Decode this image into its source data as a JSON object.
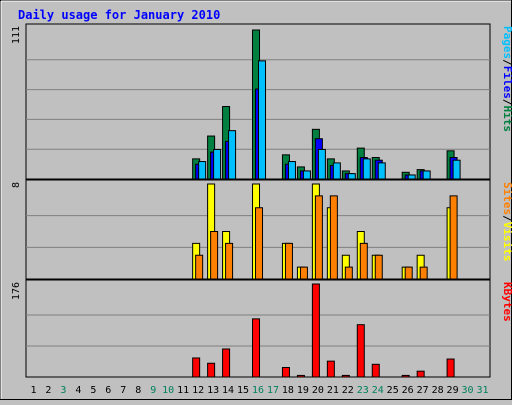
{
  "chart_data": {
    "type": "bar",
    "title": "Daily usage for January 2010",
    "categories": [
      "1",
      "2",
      "3",
      "4",
      "5",
      "6",
      "7",
      "8",
      "9",
      "10",
      "11",
      "12",
      "13",
      "14",
      "15",
      "16",
      "17",
      "18",
      "19",
      "20",
      "21",
      "22",
      "23",
      "24",
      "25",
      "26",
      "27",
      "28",
      "29",
      "30",
      "31"
    ],
    "weekend_days": [
      3,
      9,
      10,
      16,
      17,
      23,
      24,
      30,
      31
    ],
    "panels": [
      {
        "id": "hits-files-pages",
        "ymax": 111,
        "ymax_label": "111",
        "legend": [
          {
            "text": "Pages",
            "color": "#00c0ff"
          },
          {
            "text": "/",
            "color": "#000000"
          },
          {
            "text": "Files",
            "color": "#0000ff"
          },
          {
            "text": "/",
            "color": "#000000"
          },
          {
            "text": "Hits",
            "color": "#008040"
          }
        ],
        "series": [
          {
            "name": "Hits",
            "color": "#008040",
            "values": [
              0,
              0,
              0,
              0,
              0,
              0,
              0,
              0,
              0,
              0,
              0,
              15,
              32,
              54,
              0,
              111,
              0,
              18,
              9,
              37,
              15,
              6,
              23,
              16,
              0,
              5,
              7,
              0,
              21,
              0,
              0
            ]
          },
          {
            "name": "Files",
            "color": "#0000ff",
            "values": [
              0,
              0,
              0,
              0,
              0,
              0,
              0,
              0,
              0,
              0,
              0,
              11,
              20,
              28,
              0,
              67,
              0,
              11,
              6,
              30,
              10,
              4,
              16,
              14,
              0,
              3,
              6,
              0,
              16,
              0,
              0
            ]
          },
          {
            "name": "Pages",
            "color": "#00c0ff",
            "values": [
              0,
              0,
              0,
              0,
              0,
              0,
              0,
              0,
              0,
              0,
              0,
              13,
              22,
              36,
              0,
              88,
              0,
              13,
              6,
              22,
              12,
              4,
              15,
              12,
              0,
              3,
              6,
              0,
              14,
              0,
              0
            ]
          }
        ]
      },
      {
        "id": "visits-sites",
        "ymax": 8,
        "ymax_label": "8",
        "legend": [
          {
            "text": "Sites",
            "color": "#ff8000"
          },
          {
            "text": "/",
            "color": "#000000"
          },
          {
            "text": "Visits",
            "color": "#ffff00"
          }
        ],
        "series": [
          {
            "name": "Visits",
            "color": "#ffff00",
            "values": [
              0,
              0,
              0,
              0,
              0,
              0,
              0,
              0,
              0,
              0,
              0,
              3,
              8,
              4,
              0,
              8,
              0,
              3,
              1,
              8,
              6,
              2,
              4,
              2,
              0,
              1,
              2,
              0,
              6,
              0,
              0
            ]
          },
          {
            "name": "Sites",
            "color": "#ff8000",
            "values": [
              0,
              0,
              0,
              0,
              0,
              0,
              0,
              0,
              0,
              0,
              0,
              2,
              4,
              3,
              0,
              6,
              0,
              3,
              1,
              7,
              7,
              1,
              3,
              2,
              0,
              1,
              1,
              0,
              7,
              0,
              0
            ]
          }
        ]
      },
      {
        "id": "kbytes",
        "ymax": 176,
        "ymax_label": "176",
        "legend": [
          {
            "text": "KBytes",
            "color": "#ff0000"
          }
        ],
        "series": [
          {
            "name": "KBytes",
            "color": "#ff0000",
            "values": [
              0,
              0,
              0,
              0,
              0,
              0,
              0,
              0,
              0,
              0,
              0,
              36,
              26,
              53,
              0,
              110,
              0,
              18,
              3,
              176,
              30,
              3,
              99,
              24,
              0,
              3,
              11,
              0,
              34,
              0,
              0
            ]
          }
        ]
      }
    ]
  },
  "colors": {
    "background": "#c0c0c0",
    "plot_background": "#c0c0c0",
    "title": "#0000ff",
    "weekday_label": "#000000",
    "weekend_label": "#00805c",
    "gridline": "#808080"
  }
}
